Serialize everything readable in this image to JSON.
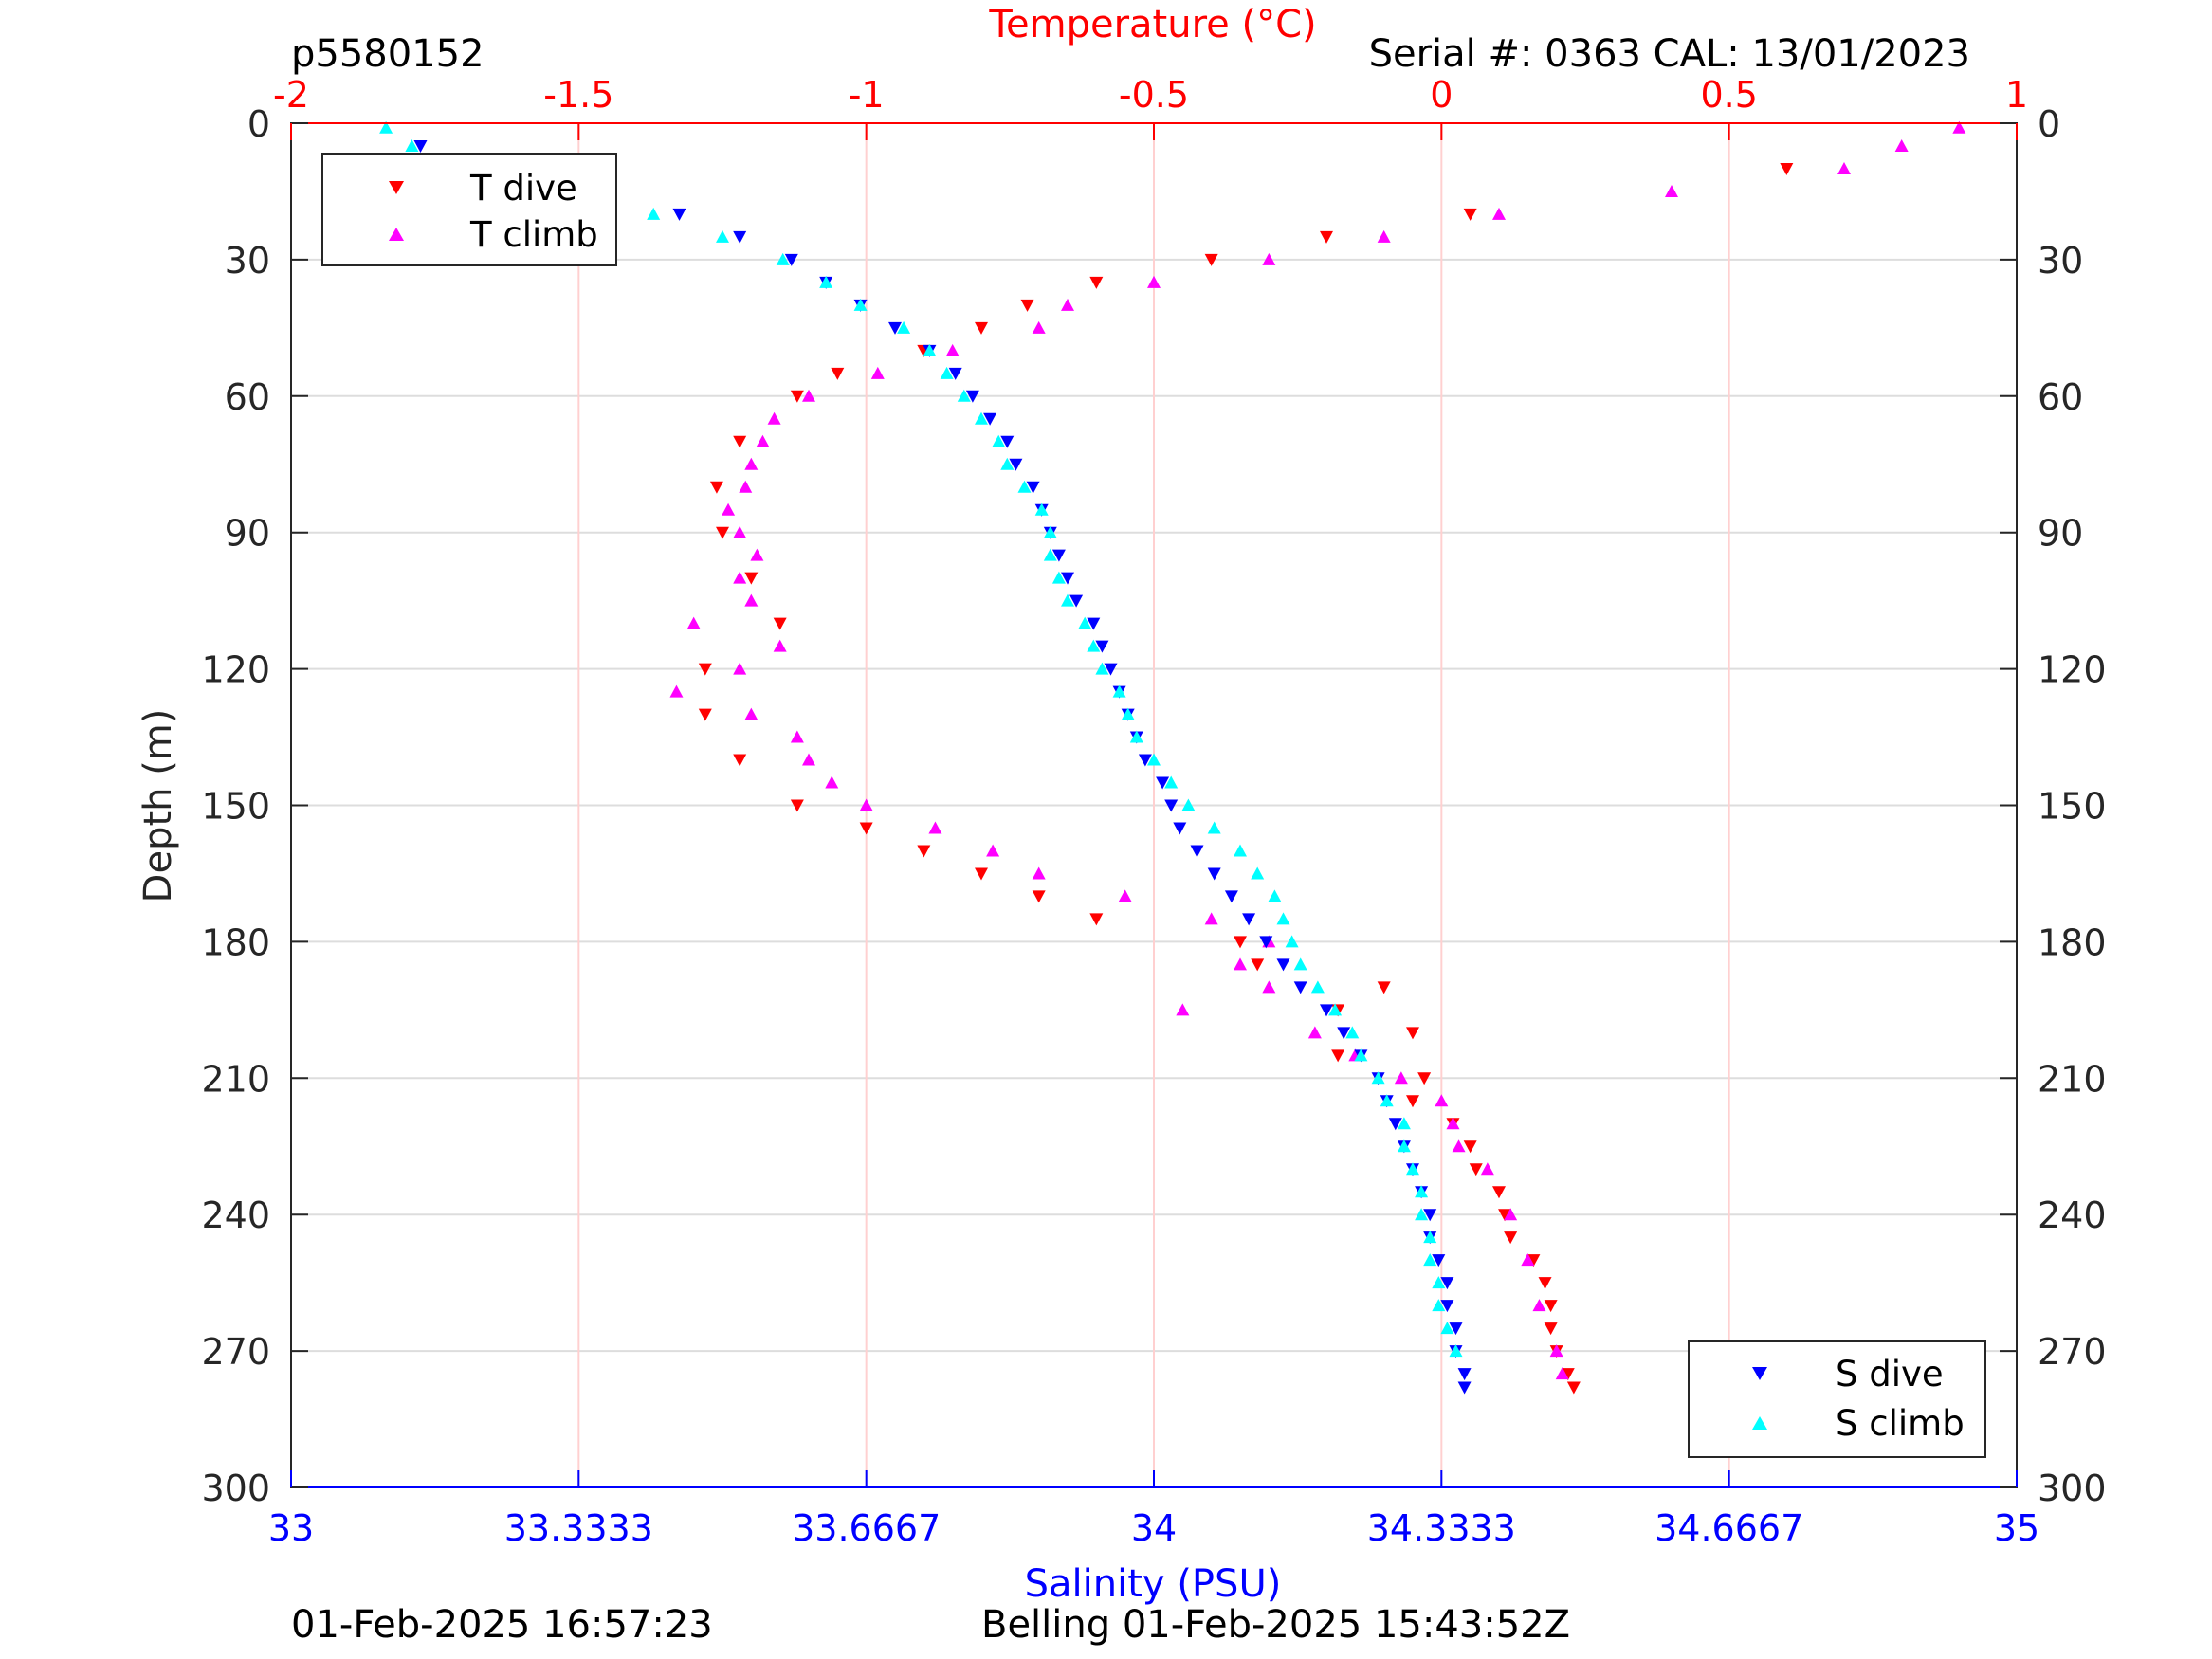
{
  "header": {
    "left_label": "p5580152",
    "right_label": "Serial #: 0363  CAL: 13/01/2023"
  },
  "footer": {
    "left": "01-Feb-2025 16:57:23",
    "center": "Belling 01-Feb-2025 15:43:52Z"
  },
  "colors": {
    "temperature_axis": "#ff0000",
    "salinity_axis": "#0000ff",
    "t_dive": "#ff0000",
    "t_climb": "#ff00ff",
    "s_dive": "#0000ff",
    "s_climb": "#00ffff"
  },
  "chart_data": {
    "type": "scatter",
    "ylabel": "Depth (m)",
    "ylim": [
      0,
      300
    ],
    "y_reversed": true,
    "yticks": [
      0,
      30,
      60,
      90,
      120,
      150,
      180,
      210,
      240,
      270,
      300
    ],
    "top_axis": {
      "label": "Temperature (°C)",
      "lim": [
        -2,
        1
      ],
      "ticks": [
        -2,
        -1.5,
        -1,
        -0.5,
        0,
        0.5,
        1
      ],
      "tick_labels": [
        "-2",
        "-1.5",
        "-1",
        "-0.5",
        "0",
        "0.5",
        "1"
      ]
    },
    "bottom_axis": {
      "label": "Salinity (PSU)",
      "lim": [
        33,
        35
      ],
      "ticks": [
        33,
        33.3333,
        33.6667,
        34,
        34.3333,
        34.6667,
        35
      ],
      "tick_labels": [
        "33",
        "33.3333",
        "33.6667",
        "34",
        "34.3333",
        "34.6667",
        "35"
      ]
    },
    "grid": true,
    "legends": [
      {
        "placement": "top-left",
        "entries": [
          "T dive",
          "T climb"
        ]
      },
      {
        "placement": "bottom-right",
        "entries": [
          "S dive",
          "S climb"
        ]
      }
    ],
    "series": [
      {
        "name": "T dive",
        "axis": "top",
        "marker": "triangle-down",
        "depth": [
          10,
          20,
          25,
          30,
          35,
          40,
          45,
          50,
          55,
          60,
          70,
          80,
          90,
          100,
          110,
          120,
          130,
          140,
          150,
          155,
          160,
          165,
          170,
          175,
          180,
          185,
          190,
          195,
          200,
          205,
          210,
          215,
          220,
          225,
          230,
          235,
          240,
          245,
          250,
          255,
          260,
          265,
          270,
          275,
          278
        ],
        "temp": [
          0.6,
          0.05,
          -0.2,
          -0.4,
          -0.6,
          -0.72,
          -0.8,
          -0.9,
          -1.05,
          -1.12,
          -1.22,
          -1.26,
          -1.25,
          -1.2,
          -1.15,
          -1.28,
          -1.28,
          -1.22,
          -1.12,
          -1.0,
          -0.9,
          -0.8,
          -0.7,
          -0.6,
          -0.35,
          -0.32,
          -0.1,
          -0.18,
          -0.05,
          -0.18,
          -0.03,
          -0.05,
          0.02,
          0.05,
          0.06,
          0.1,
          0.11,
          0.12,
          0.16,
          0.18,
          0.19,
          0.19,
          0.2,
          0.22,
          0.23
        ]
      },
      {
        "name": "T climb",
        "axis": "top",
        "marker": "triangle-up",
        "depth": [
          1,
          5,
          10,
          15,
          20,
          25,
          30,
          35,
          40,
          45,
          50,
          55,
          60,
          65,
          70,
          75,
          80,
          85,
          90,
          95,
          100,
          105,
          110,
          115,
          120,
          125,
          130,
          135,
          140,
          145,
          150,
          155,
          160,
          165,
          170,
          175,
          180,
          185,
          190,
          195,
          200,
          205,
          210,
          215,
          220,
          225,
          230,
          240,
          250,
          260,
          270,
          275
        ],
        "temp": [
          0.9,
          0.8,
          0.7,
          0.4,
          0.1,
          -0.1,
          -0.3,
          -0.5,
          -0.65,
          -0.7,
          -0.85,
          -0.98,
          -1.1,
          -1.16,
          -1.18,
          -1.2,
          -1.21,
          -1.24,
          -1.22,
          -1.19,
          -1.22,
          -1.2,
          -1.3,
          -1.15,
          -1.22,
          -1.33,
          -1.2,
          -1.12,
          -1.1,
          -1.06,
          -1.0,
          -0.88,
          -0.78,
          -0.7,
          -0.55,
          -0.4,
          -0.3,
          -0.35,
          -0.3,
          -0.45,
          -0.22,
          -0.15,
          -0.07,
          0.0,
          0.02,
          0.03,
          0.08,
          0.12,
          0.15,
          0.17,
          0.2,
          0.21
        ]
      },
      {
        "name": "S dive",
        "axis": "bottom",
        "marker": "triangle-down",
        "depth": [
          5,
          10,
          15,
          20,
          25,
          30,
          35,
          40,
          45,
          50,
          55,
          60,
          65,
          70,
          75,
          80,
          85,
          90,
          95,
          100,
          105,
          110,
          115,
          120,
          125,
          130,
          135,
          140,
          145,
          150,
          155,
          160,
          165,
          170,
          175,
          180,
          185,
          190,
          195,
          200,
          205,
          210,
          215,
          220,
          225,
          230,
          235,
          240,
          245,
          250,
          255,
          260,
          265,
          270,
          275,
          278
        ],
        "sal": [
          33.15,
          33.22,
          33.32,
          33.45,
          33.52,
          33.58,
          33.62,
          33.66,
          33.7,
          33.74,
          33.77,
          33.79,
          33.81,
          33.83,
          33.84,
          33.86,
          33.87,
          33.88,
          33.89,
          33.9,
          33.91,
          33.93,
          33.94,
          33.95,
          33.96,
          33.97,
          33.98,
          33.99,
          34.01,
          34.02,
          34.03,
          34.05,
          34.07,
          34.09,
          34.11,
          34.13,
          34.15,
          34.17,
          34.2,
          34.22,
          34.24,
          34.26,
          34.27,
          34.28,
          34.29,
          34.3,
          34.31,
          34.32,
          34.32,
          34.33,
          34.34,
          34.34,
          34.35,
          34.35,
          34.36,
          34.36
        ]
      },
      {
        "name": "S climb",
        "axis": "bottom",
        "marker": "triangle-up",
        "depth": [
          1,
          5,
          10,
          15,
          20,
          25,
          30,
          35,
          40,
          45,
          50,
          55,
          60,
          65,
          70,
          75,
          80,
          85,
          90,
          95,
          100,
          105,
          110,
          115,
          120,
          125,
          130,
          135,
          140,
          145,
          150,
          155,
          160,
          165,
          170,
          175,
          180,
          185,
          190,
          195,
          200,
          205,
          210,
          215,
          220,
          225,
          230,
          235,
          240,
          245,
          250,
          255,
          260,
          265,
          270
        ],
        "sal": [
          33.11,
          33.14,
          33.17,
          33.28,
          33.42,
          33.5,
          33.57,
          33.62,
          33.66,
          33.71,
          33.74,
          33.76,
          33.78,
          33.8,
          33.82,
          33.83,
          33.85,
          33.87,
          33.88,
          33.88,
          33.89,
          33.9,
          33.92,
          33.93,
          33.94,
          33.96,
          33.97,
          33.98,
          34.0,
          34.02,
          34.04,
          34.07,
          34.1,
          34.12,
          34.14,
          34.15,
          34.16,
          34.17,
          34.19,
          34.21,
          34.23,
          34.24,
          34.26,
          34.27,
          34.29,
          34.29,
          34.3,
          34.31,
          34.31,
          34.32,
          34.32,
          34.33,
          34.33,
          34.34,
          34.35
        ]
      }
    ]
  }
}
